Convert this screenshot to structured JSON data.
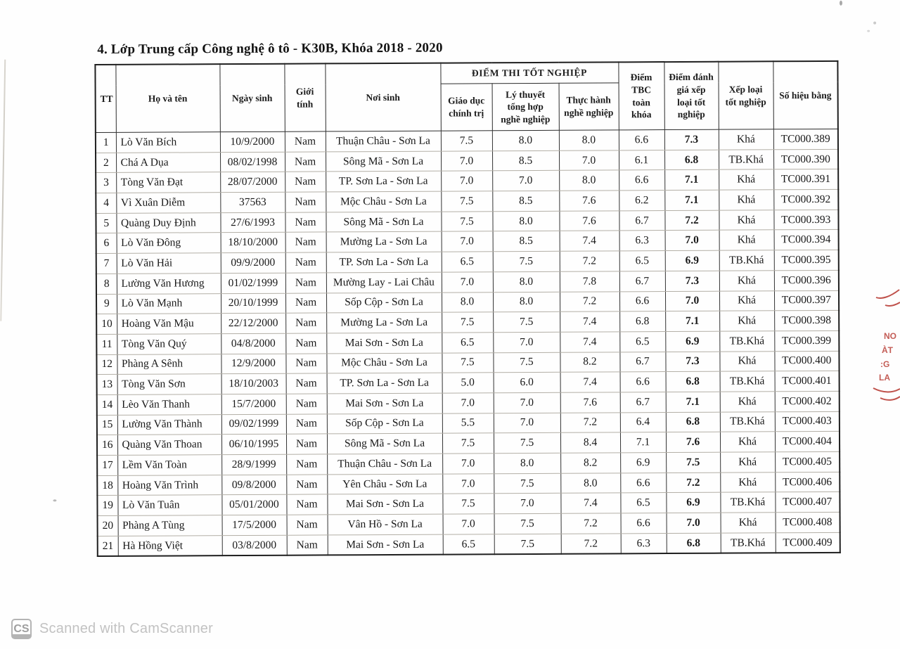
{
  "document": {
    "title": "4. Lớp Trung cấp Công nghệ ô tô - K30B, Khóa 2018 - 2020"
  },
  "table": {
    "headers": {
      "tt": "TT",
      "name": "Họ và tên",
      "dob": "Ngày sinh",
      "gender": "Giới tính",
      "pob": "Nơi sinh",
      "exam_group": "ĐIỂM THI TỐT NGHIỆP",
      "politics": "Giáo dục chính trị",
      "theory": "Lý thuyết tổng hợp nghề nghiệp",
      "practice": "Thực hành nghề nghiệp",
      "gpa": "Điểm TBC toàn khóa",
      "eval": "Điểm đánh giá xếp loại tốt nghiệp",
      "rank": "Xếp loại tốt nghiệp",
      "serial": "Số hiệu bằng"
    },
    "rows": [
      [
        "1",
        "Lò Văn Bích",
        "10/9/2000",
        "Nam",
        "Thuận Châu - Sơn La",
        "7.5",
        "8.0",
        "8.0",
        "6.6",
        "7.3",
        "Khá",
        "TC000.389"
      ],
      [
        "2",
        "Chá A Dụa",
        "08/02/1998",
        "Nam",
        "Sông Mã - Sơn La",
        "7.0",
        "8.5",
        "7.0",
        "6.1",
        "6.8",
        "TB.Khá",
        "TC000.390"
      ],
      [
        "3",
        "Tòng Văn Đạt",
        "28/07/2000",
        "Nam",
        "TP. Sơn La - Sơn La",
        "7.0",
        "7.0",
        "8.0",
        "6.6",
        "7.1",
        "Khá",
        "TC000.391"
      ],
      [
        "4",
        "Vì Xuân Diễm",
        "37563",
        "Nam",
        "Mộc Châu - Sơn La",
        "7.5",
        "8.5",
        "7.6",
        "6.2",
        "7.1",
        "Khá",
        "TC000.392"
      ],
      [
        "5",
        "Quàng Duy Định",
        "27/6/1993",
        "Nam",
        "Sông Mã - Sơn La",
        "7.5",
        "8.0",
        "7.6",
        "6.7",
        "7.2",
        "Khá",
        "TC000.393"
      ],
      [
        "6",
        "Lò Văn Đông",
        "18/10/2000",
        "Nam",
        "Mường La - Sơn La",
        "7.0",
        "8.5",
        "7.4",
        "6.3",
        "7.0",
        "Khá",
        "TC000.394"
      ],
      [
        "7",
        "Lò Văn Hải",
        "09/9/2000",
        "Nam",
        "TP. Sơn La - Sơn La",
        "6.5",
        "7.5",
        "7.2",
        "6.5",
        "6.9",
        "TB.Khá",
        "TC000.395"
      ],
      [
        "8",
        "Lường Văn Hương",
        "01/02/1999",
        "Nam",
        "Mường Lay - Lai Châu",
        "7.0",
        "8.0",
        "7.8",
        "6.7",
        "7.3",
        "Khá",
        "TC000.396"
      ],
      [
        "9",
        "Lò Văn Mạnh",
        "20/10/1999",
        "Nam",
        "Sốp Cộp - Sơn La",
        "8.0",
        "8.0",
        "7.2",
        "6.6",
        "7.0",
        "Khá",
        "TC000.397"
      ],
      [
        "10",
        "Hoàng Văn Mậu",
        "22/12/2000",
        "Nam",
        "Mường La - Sơn La",
        "7.5",
        "7.5",
        "7.4",
        "6.8",
        "7.1",
        "Khá",
        "TC000.398"
      ],
      [
        "11",
        "Tòng Văn Quý",
        "04/8/2000",
        "Nam",
        "Mai Sơn - Sơn La",
        "6.5",
        "7.0",
        "7.4",
        "6.5",
        "6.9",
        "TB.Khá",
        "TC000.399"
      ],
      [
        "12",
        "Phàng A Sênh",
        "12/9/2000",
        "Nam",
        "Mộc Châu - Sơn La",
        "7.5",
        "7.5",
        "8.2",
        "6.7",
        "7.3",
        "Khá",
        "TC000.400"
      ],
      [
        "13",
        "Tòng Văn Sơn",
        "18/10/2003",
        "Nam",
        "TP. Sơn La - Sơn La",
        "5.0",
        "6.0",
        "7.4",
        "6.6",
        "6.8",
        "TB.Khá",
        "TC000.401"
      ],
      [
        "14",
        "Lèo Văn Thanh",
        "15/7/2000",
        "Nam",
        "Mai Sơn - Sơn La",
        "7.0",
        "7.0",
        "7.6",
        "6.7",
        "7.1",
        "Khá",
        "TC000.402"
      ],
      [
        "15",
        "Lường Văn Thành",
        "09/02/1999",
        "Nam",
        "Sốp Cộp - Sơn La",
        "5.5",
        "7.0",
        "7.2",
        "6.4",
        "6.8",
        "TB.Khá",
        "TC000.403"
      ],
      [
        "16",
        "Quàng Văn Thoan",
        "06/10/1995",
        "Nam",
        "Sông Mã - Sơn La",
        "7.5",
        "7.5",
        "8.4",
        "7.1",
        "7.6",
        "Khá",
        "TC000.404"
      ],
      [
        "17",
        "Lềm Văn Toàn",
        "28/9/1999",
        "Nam",
        "Thuận Châu - Sơn La",
        "7.0",
        "8.0",
        "8.2",
        "6.9",
        "7.5",
        "Khá",
        "TC000.405"
      ],
      [
        "18",
        "Hoàng Văn Trình",
        "09/8/2000",
        "Nam",
        "Yên Châu - Sơn La",
        "7.0",
        "7.5",
        "8.0",
        "6.6",
        "7.2",
        "Khá",
        "TC000.406"
      ],
      [
        "19",
        "Lò Văn Tuân",
        "05/01/2000",
        "Nam",
        "Mai Sơn - Sơn La",
        "7.5",
        "7.0",
        "7.4",
        "6.5",
        "6.9",
        "TB.Khá",
        "TC000.407"
      ],
      [
        "20",
        "Phàng A Tùng",
        "17/5/2000",
        "Nam",
        "Vân Hồ - Sơn La",
        "7.0",
        "7.5",
        "7.2",
        "6.6",
        "7.0",
        "Khá",
        "TC000.408"
      ],
      [
        "21",
        "Hà Hồng Việt",
        "03/8/2000",
        "Nam",
        "Mai Sơn - Sơn La",
        "6.5",
        "7.5",
        "7.2",
        "6.3",
        "6.8",
        "TB.Khá",
        "TC000.409"
      ]
    ]
  },
  "stamp": {
    "color": "#b5342c",
    "fragments": [
      "NO",
      "ÀT",
      ":G",
      "LA"
    ]
  },
  "footer": {
    "badge": "CS",
    "text": "Scanned with CamScanner"
  }
}
